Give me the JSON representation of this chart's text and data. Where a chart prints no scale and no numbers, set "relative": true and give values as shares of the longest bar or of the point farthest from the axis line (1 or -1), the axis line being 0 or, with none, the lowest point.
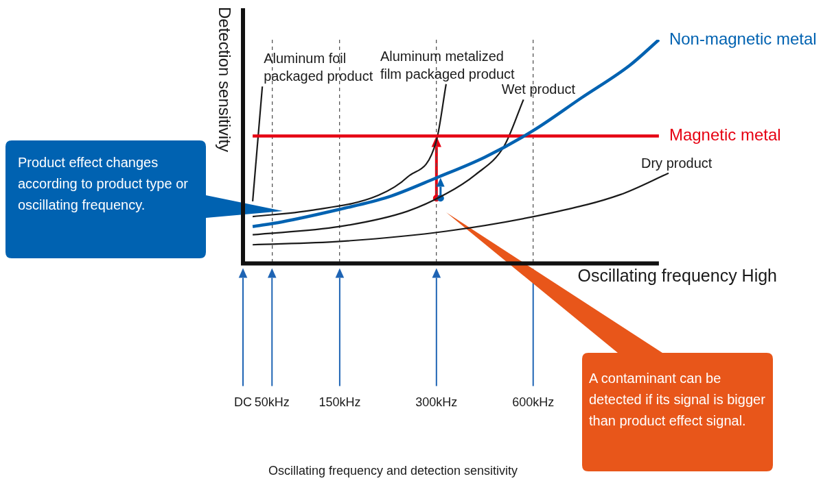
{
  "chart_data": {
    "type": "line",
    "relative": true,
    "xlabel": "Oscillating frequency High",
    "ylabel": "Detection sensitivity",
    "categories": [
      "DC",
      null,
      null,
      "50kHz",
      null,
      null,
      null,
      null,
      null,
      null,
      "150kHz",
      null,
      null,
      null,
      null,
      null,
      null,
      null,
      null,
      null,
      "300kHz",
      null,
      null,
      null,
      null,
      null,
      null,
      null,
      null,
      null,
      "600kHz",
      null,
      null,
      null,
      null,
      null,
      null,
      null,
      null,
      null,
      null,
      null,
      null,
      null,
      null
    ],
    "grid": "x",
    "series": [
      {
        "name": "Non-magnetic metal",
        "color": "#0062b1",
        "values": [
          null,
          0.157,
          null,
          null,
          0.178,
          null,
          null,
          null,
          null,
          null,
          0.235,
          null,
          null,
          null,
          null,
          0.29,
          null,
          null,
          null,
          null,
          0.377,
          null,
          null,
          null,
          null,
          0.47,
          null,
          null,
          null,
          null,
          0.59,
          null,
          null,
          null,
          null,
          0.738,
          null,
          null,
          null,
          null,
          0.885,
          null,
          null,
          1.0,
          null
        ]
      },
      {
        "name": "Magnetic metal",
        "color": "#e60012",
        "values": [
          null,
          0.566,
          null,
          null,
          null,
          null,
          null,
          null,
          null,
          null,
          null,
          null,
          null,
          null,
          null,
          null,
          null,
          null,
          null,
          null,
          null,
          null,
          null,
          null,
          null,
          null,
          null,
          null,
          null,
          null,
          null,
          null,
          null,
          null,
          null,
          null,
          null,
          null,
          null,
          null,
          null,
          null,
          null,
          0.566,
          null
        ]
      },
      {
        "name": "Aluminum foil packaged product",
        "color": "#1a1a1a",
        "values": [
          null,
          0.271,
          0.789,
          null,
          null,
          null,
          null,
          null,
          null,
          null,
          null,
          null,
          null,
          null,
          null,
          null,
          null,
          null,
          null,
          null,
          null,
          null,
          null,
          null,
          null,
          null,
          null,
          null,
          null,
          null,
          null,
          null,
          null,
          null,
          null,
          null,
          null,
          null,
          null,
          null,
          null,
          null,
          null,
          null,
          null
        ]
      },
      {
        "name": "Aluminum metalized film packaged product",
        "color": "#1a1a1a",
        "values": [
          null,
          0.202,
          null,
          null,
          null,
          null,
          null,
          0.23,
          null,
          null,
          null,
          null,
          null,
          null,
          0.298,
          null,
          null,
          0.38,
          null,
          null,
          0.545,
          0.8,
          null,
          null,
          null,
          null,
          null,
          null,
          null,
          null,
          null,
          null,
          null,
          null,
          null,
          null,
          null,
          null,
          null,
          null,
          null,
          null,
          null,
          null,
          null
        ]
      },
      {
        "name": "Wet product",
        "color": "#1a1a1a",
        "values": [
          null,
          0.12,
          null,
          null,
          null,
          null,
          null,
          null,
          null,
          null,
          0.157,
          null,
          null,
          null,
          null,
          null,
          null,
          0.226,
          null,
          null,
          null,
          0.305,
          null,
          null,
          0.39,
          null,
          null,
          0.52,
          null,
          0.73,
          null,
          null,
          null,
          null,
          null,
          null,
          null,
          null,
          null,
          null,
          null,
          null,
          null,
          null,
          null
        ]
      },
      {
        "name": "Dry product",
        "color": "#1a1a1a",
        "values": [
          null,
          0.075,
          null,
          null,
          null,
          null,
          null,
          null,
          null,
          null,
          0.09,
          null,
          null,
          null,
          null,
          null,
          null,
          null,
          null,
          null,
          null,
          0.136,
          null,
          null,
          null,
          null,
          null,
          null,
          null,
          null,
          null,
          null,
          0.22,
          null,
          null,
          null,
          null,
          null,
          null,
          0.301,
          null,
          null,
          null,
          null,
          0.398
        ]
      }
    ],
    "annotations": [
      "Product effect changes according to product type or oscillating frequency.",
      "A contaminant can be detected if its signal is bigger than product effect signal.",
      "Oscillating frequency and detection sensitivity"
    ]
  }
}
